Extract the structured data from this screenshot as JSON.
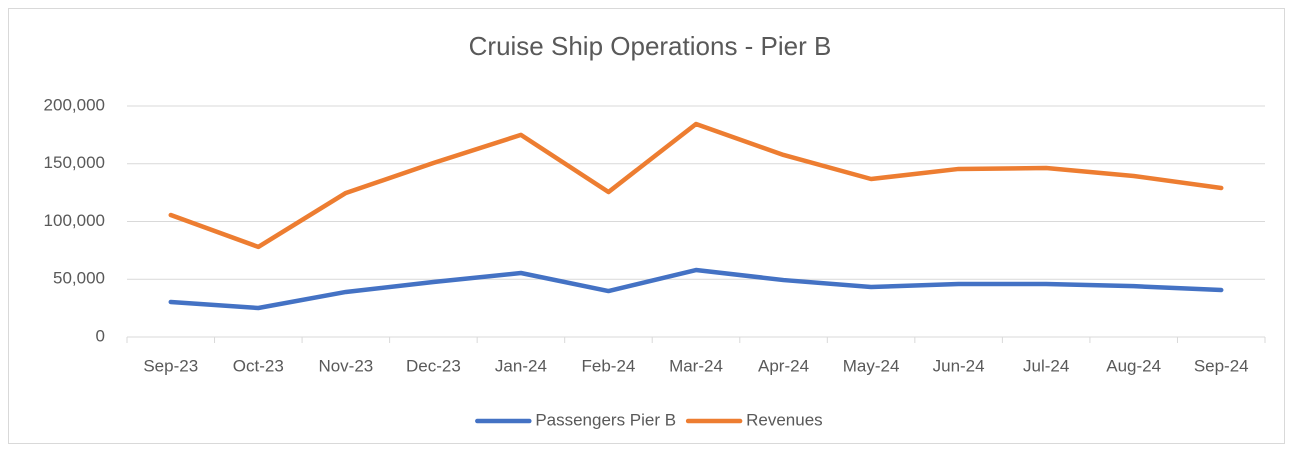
{
  "chart_data": {
    "type": "line",
    "title": "Cruise Ship Operations - Pier B",
    "categories": [
      "Sep-23",
      "Oct-23",
      "Nov-23",
      "Dec-23",
      "Jan-24",
      "Feb-24",
      "Mar-24",
      "Apr-24",
      "May-24",
      "Jun-24",
      "Jul-24",
      "Aug-24",
      "Sep-24"
    ],
    "series": [
      {
        "name": "Passengers Pier B",
        "color": "#4472c4",
        "values": [
          30300,
          25100,
          39000,
          47600,
          55400,
          39800,
          58000,
          49300,
          43300,
          45900,
          45900,
          44000,
          40700
        ]
      },
      {
        "name": "Revenues",
        "color": "#ed7d31",
        "values": [
          105600,
          78000,
          124700,
          150600,
          175000,
          125500,
          184400,
          157600,
          136800,
          145500,
          146300,
          139400,
          129000
        ]
      }
    ],
    "ylim": [
      0,
      200000
    ],
    "yticks": [
      0,
      {
        "value": 50000,
        "label": "50,000"
      },
      {
        "value": 100000,
        "label": "100,000"
      },
      {
        "value": 150000,
        "label": "150,000"
      },
      {
        "value": 200000,
        "label": "200,000"
      }
    ],
    "grid": true,
    "legend": "bottom"
  }
}
